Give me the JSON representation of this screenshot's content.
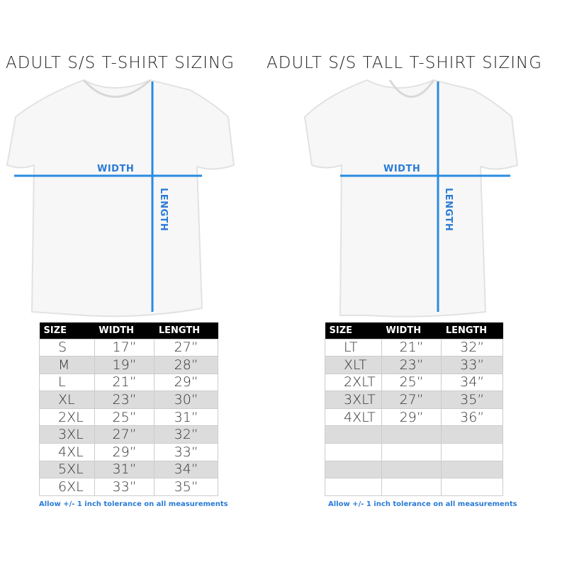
{
  "left": {
    "title": "ADULT S/S T-SHIRT SIZING",
    "width_label": "WIDTH",
    "length_label": "LENGTH",
    "headers": [
      "SIZE",
      "WIDTH",
      "LENGTH"
    ],
    "rows": [
      [
        "S",
        "17”",
        "27”"
      ],
      [
        "M",
        "19”",
        "28”"
      ],
      [
        "L",
        "21”",
        "29”"
      ],
      [
        "XL",
        "23”",
        "30”"
      ],
      [
        "2XL",
        "25”",
        "31”"
      ],
      [
        "3XL",
        "27”",
        "32”"
      ],
      [
        "4XL",
        "29”",
        "33”"
      ],
      [
        "5XL",
        "31”",
        "34”"
      ],
      [
        "6XL",
        "33”",
        "35”"
      ]
    ],
    "note": "Allow +/- 1 inch tolerance on all measurements"
  },
  "right": {
    "title": "ADULT S/S TALL T-SHIRT SIZING",
    "width_label": "WIDTH",
    "length_label": "LENGTH",
    "headers": [
      "SIZE",
      "WIDTH",
      "LENGTH"
    ],
    "rows": [
      [
        "LT",
        "21”",
        "32”"
      ],
      [
        "XLT",
        "23”",
        "33”"
      ],
      [
        "2XLT",
        "25”",
        "34”"
      ],
      [
        "3XLT",
        "27”",
        "35”"
      ],
      [
        "4XLT",
        "29”",
        "36”"
      ],
      [
        "",
        "",
        ""
      ],
      [
        "",
        "",
        ""
      ],
      [
        "",
        "",
        ""
      ],
      [
        "",
        "",
        ""
      ]
    ],
    "note": "Allow +/- 1 inch tolerance on all measurements"
  },
  "colors": {
    "accent": "#2a7bd6",
    "header_bg": "#000000",
    "stripe": "#dcdcdc"
  }
}
